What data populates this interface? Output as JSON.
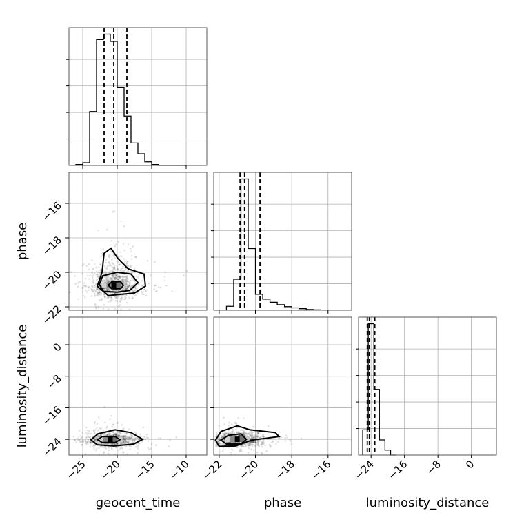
{
  "chart_data": {
    "type": "corner",
    "parameters": [
      "geocent_time",
      "phase",
      "luminosity_distance"
    ],
    "axes": {
      "geocent_time": {
        "xlim": [
          -27,
          -7
        ],
        "ticks": [
          -25,
          -20,
          -15,
          -10
        ],
        "tick_labels": [
          "−25",
          "−20",
          "−15",
          "−10"
        ]
      },
      "phase": {
        "xlim": [
          -22.3,
          -14.7
        ],
        "ticks": [
          -22,
          -20,
          -18,
          -16
        ],
        "tick_labels": [
          "−22",
          "−20",
          "−18",
          "−16"
        ]
      },
      "luminosity_distance": {
        "xlim": [
          -27,
          6
        ],
        "ticks": [
          -24,
          -16,
          -8,
          0
        ],
        "tick_labels": [
          "−24",
          "−16",
          "−8",
          "0"
        ]
      }
    },
    "row_axes": {
      "phase": {
        "ylim": [
          -22.2,
          -14.2
        ],
        "ticks": [
          -22,
          -20,
          -18,
          -16
        ],
        "tick_labels": [
          "−22",
          "−20",
          "−18",
          "−16"
        ]
      },
      "luminosity_distance": {
        "ylim": [
          -28,
          7
        ],
        "ticks": [
          -24,
          -16,
          -8,
          0
        ],
        "tick_labels": [
          "−24",
          "−16",
          "−8",
          "0"
        ]
      }
    },
    "marginals": [
      {
        "parameter": "geocent_time",
        "bin_edges": [
          -26,
          -25,
          -24,
          -23,
          -22,
          -21,
          -20,
          -19,
          -18,
          -17,
          -16,
          -15,
          -14,
          -13,
          -12,
          -11,
          -10
        ],
        "counts": [
          1,
          3,
          60,
          140,
          146,
          138,
          87,
          55,
          25,
          13,
          4,
          1,
          0,
          0,
          0,
          0
        ],
        "quantiles": [
          -21.9,
          -20.5,
          -18.6
        ]
      },
      {
        "parameter": "phase",
        "bin_edges": [
          -21.6,
          -21.2,
          -20.8,
          -20.4,
          -20.0,
          -19.6,
          -19.2,
          -18.8,
          -18.4,
          -18.0,
          -17.6,
          -17.2,
          -16.8,
          -16.4
        ],
        "counts": [
          10,
          78,
          330,
          155,
          40,
          28,
          20,
          14,
          9,
          6,
          4,
          2,
          1
        ],
        "quantiles": [
          -20.85,
          -20.6,
          -19.75
        ]
      },
      {
        "parameter": "luminosity_distance",
        "bin_edges": [
          -26,
          -24.67,
          -23.33,
          -22,
          -20.67,
          -19.33,
          -18
        ],
        "counts": [
          5,
          26,
          13,
          3,
          1,
          0
        ],
        "quantiles": [
          -24.9,
          -24.4,
          -23.1
        ]
      }
    ],
    "scatter_2d": [
      {
        "x": "geocent_time",
        "y": "phase",
        "center": [
          -20.5,
          -20.75
        ],
        "levels": [
          [
            [
              -20.8,
              -20.55
            ],
            [
              -19.5,
              -20.55
            ],
            [
              -19.1,
              -20.75
            ],
            [
              -19.5,
              -20.95
            ],
            [
              -20.8,
              -20.95
            ],
            [
              -21.3,
              -20.75
            ]
          ],
          [
            [
              -22.1,
              -20.2
            ],
            [
              -20.0,
              -20.0
            ],
            [
              -18.0,
              -20.1
            ],
            [
              -17.0,
              -20.6
            ],
            [
              -18.2,
              -21.05
            ],
            [
              -20.0,
              -21.15
            ],
            [
              -22.0,
              -21.1
            ],
            [
              -22.6,
              -20.7
            ]
          ],
          [
            [
              -22.2,
              -20.0
            ],
            [
              -21.9,
              -18.9
            ],
            [
              -20.9,
              -18.6
            ],
            [
              -19.9,
              -19.2
            ],
            [
              -18.4,
              -19.8
            ],
            [
              -16.1,
              -20.1
            ],
            [
              -15.9,
              -20.8
            ],
            [
              -17.5,
              -21.2
            ],
            [
              -21.3,
              -21.35
            ],
            [
              -22.9,
              -20.8
            ]
          ]
        ]
      },
      {
        "x": "geocent_time",
        "y": "luminosity_distance",
        "center": [
          -21.0,
          -24.1
        ],
        "levels": [
          [
            [
              -22.2,
              -23.3
            ],
            [
              -20.3,
              -23.3
            ],
            [
              -19.6,
              -24.1
            ],
            [
              -20.3,
              -24.8
            ],
            [
              -22.2,
              -24.8
            ],
            [
              -22.8,
              -24.1
            ]
          ],
          [
            [
              -22.8,
              -22.6
            ],
            [
              -20.3,
              -21.6
            ],
            [
              -18.0,
              -22.3
            ],
            [
              -16.3,
              -24.0
            ],
            [
              -17.6,
              -25.2
            ],
            [
              -20.5,
              -25.7
            ],
            [
              -22.9,
              -25.4
            ],
            [
              -23.8,
              -24.1
            ]
          ]
        ]
      },
      {
        "x": "phase",
        "y": "luminosity_distance",
        "center": [
          -21.0,
          -24.0
        ],
        "levels": [
          [
            [
              -21.5,
              -23.0
            ],
            [
              -20.8,
              -22.6
            ],
            [
              -20.5,
              -24.0
            ],
            [
              -20.8,
              -25.2
            ],
            [
              -21.6,
              -25.2
            ],
            [
              -21.9,
              -24.2
            ]
          ],
          [
            [
              -21.9,
              -22.0
            ],
            [
              -21.0,
              -20.6
            ],
            [
              -20.3,
              -21.6
            ],
            [
              -18.9,
              -22.3
            ],
            [
              -18.7,
              -23.3
            ],
            [
              -20.2,
              -24.2
            ],
            [
              -21.1,
              -25.7
            ],
            [
              -22.0,
              -25.8
            ],
            [
              -22.2,
              -24.2
            ]
          ]
        ]
      }
    ]
  }
}
